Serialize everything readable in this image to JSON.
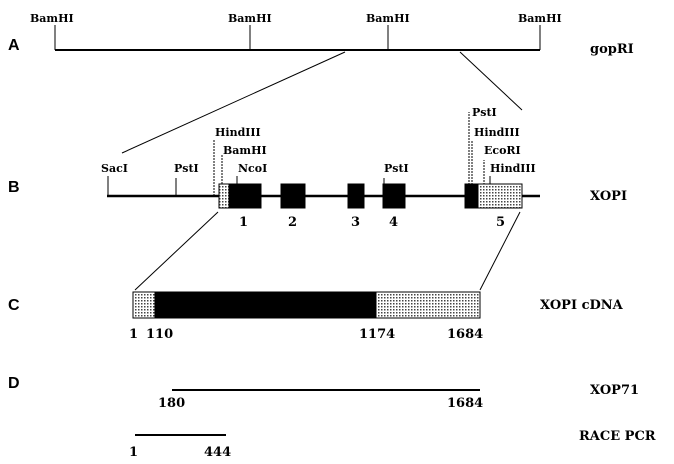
{
  "panels": {
    "a": "A",
    "b": "B",
    "c": "C",
    "d": "D"
  },
  "gopRI": {
    "name": "gopRI",
    "sites": [
      "BamHI",
      "BamHI",
      "BamHI",
      "BamHI"
    ]
  },
  "xopi": {
    "name": "XOPI",
    "sites": [
      "SacI",
      "PstI",
      "HindIII",
      "BamHI",
      "NcoI",
      "PstI",
      "PstI",
      "HindIII",
      "EcoRI",
      "HindIII"
    ],
    "exons": [
      "1",
      "2",
      "3",
      "4",
      "5"
    ]
  },
  "cdna": {
    "name": "XOPI cDNA",
    "positions": [
      "1",
      "110",
      "1174",
      "1684"
    ]
  },
  "xop71": {
    "name": "XOP71",
    "positions": [
      "180",
      "1684"
    ]
  },
  "race": {
    "name": "RACE PCR",
    "positions": [
      "1",
      "444"
    ]
  }
}
